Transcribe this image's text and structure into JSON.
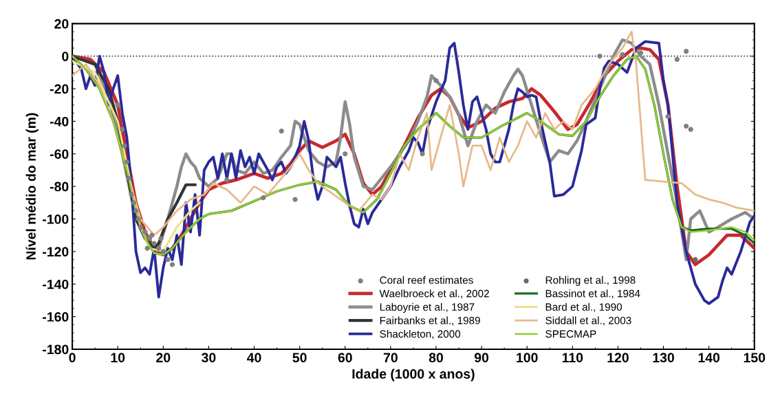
{
  "chart_data": {
    "type": "line",
    "xlabel": "Idade (1000 x anos)",
    "ylabel": "Nível médio do mar (m)",
    "xlim": [
      0,
      150
    ],
    "xticks": [
      0,
      10,
      20,
      30,
      40,
      50,
      60,
      70,
      80,
      90,
      100,
      110,
      120,
      130,
      140,
      150
    ],
    "ylim": [
      -180,
      20
    ],
    "yticks": [
      -180,
      -160,
      -140,
      -120,
      -100,
      -80,
      -60,
      -40,
      -20,
      0,
      20
    ],
    "grid": false,
    "legend": "bottom",
    "ref_lines": [
      {
        "axis": "y",
        "value": 0,
        "color": "#333333",
        "line_style": "dotted"
      }
    ],
    "series": [
      {
        "name": "Coral reef estimates",
        "type": "scatter",
        "marker": "circle",
        "color": "#808080",
        "x": [
          10,
          11,
          11.5,
          12,
          12.5,
          13,
          13.5,
          14,
          14.5,
          15,
          16,
          16.5,
          17,
          17.5,
          18,
          19,
          19.5,
          20,
          21,
          22,
          34,
          42,
          46,
          49,
          60,
          77,
          80,
          116,
          121,
          125,
          131,
          133,
          135,
          135,
          136
        ],
        "values": [
          -30,
          -45,
          -55,
          -65,
          -75,
          -85,
          -90,
          -95,
          -100,
          -105,
          -108,
          -118,
          -112,
          -110,
          -115,
          -118,
          -112,
          -120,
          -125,
          -128,
          -76,
          -87,
          -46,
          -88,
          -60,
          -60,
          -15,
          0,
          1,
          2,
          -37,
          -2,
          3,
          -43,
          -45
        ]
      },
      {
        "name": "Waelbroeck et al., 2002",
        "color": "#c8282d",
        "x": [
          0,
          4,
          7,
          10,
          12,
          14,
          16,
          18,
          20,
          22,
          24,
          26,
          28,
          30,
          33,
          36,
          40,
          43,
          46,
          48,
          50,
          52,
          55,
          58,
          60,
          62,
          64,
          66,
          68,
          70,
          73,
          76,
          79,
          81,
          83,
          85,
          87,
          90,
          93,
          96,
          99,
          101,
          103,
          106,
          109,
          111,
          114,
          117,
          120,
          123,
          125,
          127,
          129,
          131,
          133,
          135,
          137,
          140,
          144,
          147,
          150
        ],
        "values": [
          0,
          -2,
          -10,
          -30,
          -60,
          -90,
          -108,
          -118,
          -122,
          -118,
          -110,
          -100,
          -90,
          -82,
          -78,
          -76,
          -72,
          -75,
          -72,
          -66,
          -58,
          -52,
          -56,
          -52,
          -48,
          -60,
          -78,
          -85,
          -80,
          -70,
          -55,
          -38,
          -24,
          -20,
          -25,
          -36,
          -44,
          -40,
          -32,
          -28,
          -26,
          -20,
          -24,
          -34,
          -45,
          -42,
          -28,
          -12,
          -3,
          4,
          5,
          4,
          -2,
          -30,
          -80,
          -120,
          -128,
          -122,
          -110,
          -110,
          -118
        ]
      },
      {
        "name": "Laboyrie et al., 1987",
        "color": "#8c8c8c",
        "x": [
          0,
          5,
          8,
          11,
          14,
          17,
          19,
          21,
          23,
          24,
          25,
          26,
          27,
          28,
          30,
          32,
          34,
          35,
          36,
          38,
          40,
          42,
          44,
          46,
          48,
          49,
          50,
          52,
          54,
          56,
          58,
          59,
          60,
          61,
          62,
          64,
          66,
          68,
          70,
          72,
          74,
          76,
          78,
          79,
          81,
          83,
          85,
          87,
          89,
          91,
          93,
          95,
          97,
          98,
          99,
          101,
          103,
          105,
          107,
          109,
          111,
          113,
          116,
          119,
          121,
          123,
          125,
          127,
          129,
          131,
          133,
          135,
          136,
          138,
          140,
          142,
          145,
          148,
          150
        ],
        "values": [
          0,
          -5,
          -25,
          -60,
          -100,
          -115,
          -118,
          -100,
          -80,
          -68,
          -60,
          -65,
          -68,
          -75,
          -80,
          -75,
          -60,
          -60,
          -70,
          -72,
          -65,
          -72,
          -70,
          -62,
          -55,
          -40,
          -42,
          -58,
          -65,
          -68,
          -65,
          -50,
          -28,
          -42,
          -62,
          -80,
          -82,
          -75,
          -68,
          -60,
          -52,
          -40,
          -25,
          -12,
          -18,
          -25,
          -36,
          -55,
          -40,
          -30,
          -35,
          -22,
          -12,
          -8,
          -12,
          -30,
          -48,
          -65,
          -58,
          -60,
          -52,
          -40,
          -20,
          0,
          10,
          8,
          0,
          -5,
          -30,
          -60,
          -90,
          -125,
          -100,
          -95,
          -108,
          -105,
          -100,
          -96,
          -100
        ]
      },
      {
        "name": "Fairbanks et al., 1989",
        "color": "#333333",
        "x": [
          0,
          5,
          8,
          10,
          12,
          14,
          16,
          18,
          19,
          21,
          23,
          25,
          27
        ],
        "values": [
          0,
          -5,
          -20,
          -40,
          -70,
          -100,
          -112,
          -118,
          -115,
          -100,
          -90,
          -79,
          -79
        ]
      },
      {
        "name": "Shackleton, 2000",
        "color": "#2a2a9a",
        "x": [
          0,
          2,
          3,
          4,
          5,
          6,
          7,
          8,
          9,
          10,
          11,
          12,
          13,
          14,
          15,
          16,
          17,
          18,
          19,
          20,
          21,
          22,
          23,
          24,
          25,
          26,
          27,
          28,
          29,
          30,
          31,
          32,
          33,
          34,
          35,
          36,
          37,
          38,
          39,
          40,
          41,
          43,
          44,
          45,
          46,
          47,
          48,
          49,
          50,
          51,
          52,
          53,
          54,
          55,
          56,
          58,
          59,
          60,
          61,
          62,
          63,
          64,
          65,
          66,
          68,
          70,
          72,
          74,
          75,
          76,
          77,
          78,
          80,
          82,
          83,
          84,
          85,
          86,
          87,
          88,
          89,
          90,
          91,
          92,
          93,
          94,
          96,
          97,
          98,
          99,
          100,
          101,
          102,
          103,
          105,
          106,
          108,
          110,
          112,
          113,
          115,
          116,
          117,
          118,
          120,
          122,
          124,
          126,
          129,
          130,
          131,
          132,
          133,
          135,
          137,
          139,
          140,
          142,
          143,
          144,
          145,
          147,
          149,
          150
        ],
        "values": [
          0,
          -8,
          -20,
          -12,
          -18,
          0,
          -10,
          -30,
          -20,
          -12,
          -35,
          -50,
          -80,
          -120,
          -133,
          -130,
          -134,
          -118,
          -148,
          -130,
          -118,
          -125,
          -110,
          -128,
          -90,
          -108,
          -85,
          -110,
          -70,
          -65,
          -62,
          -75,
          -60,
          -75,
          -60,
          -75,
          -58,
          -68,
          -62,
          -72,
          -60,
          -70,
          -76,
          -68,
          -65,
          -72,
          -68,
          -62,
          -55,
          -40,
          -52,
          -75,
          -88,
          -80,
          -62,
          -68,
          -62,
          -78,
          -92,
          -103,
          -105,
          -94,
          -103,
          -96,
          -88,
          -80,
          -68,
          -58,
          -50,
          -53,
          -60,
          -45,
          -28,
          -15,
          5,
          8,
          -10,
          -30,
          -45,
          -28,
          -25,
          -35,
          -45,
          -60,
          -65,
          -65,
          -45,
          -30,
          -20,
          -22,
          -25,
          -24,
          -25,
          -40,
          -65,
          -86,
          -85,
          -80,
          -58,
          -42,
          -38,
          -20,
          -7,
          -3,
          -5,
          -10,
          5,
          9,
          8,
          -15,
          -30,
          -60,
          -90,
          -120,
          -140,
          -150,
          -152,
          -148,
          -138,
          -130,
          -134,
          -120,
          -102,
          -98
        ]
      },
      {
        "name": "Rohling et al., 1998",
        "type": "scatter",
        "marker": "circle",
        "color": "#6a6a6a",
        "x": [
          137
        ],
        "values": [
          -125
        ]
      },
      {
        "name": "Bassinot et al., 1984",
        "color": "#1a6b2a",
        "x": [
          0,
          3,
          6,
          9,
          12,
          14,
          16,
          18,
          20,
          22,
          25,
          28,
          30,
          35,
          40,
          45,
          50,
          54,
          58,
          61,
          64,
          67,
          70,
          73,
          76,
          80,
          83,
          86,
          90,
          95,
          100,
          103,
          107,
          110,
          113,
          116,
          119,
          122,
          124,
          126,
          128,
          130,
          132,
          134,
          136,
          140,
          145,
          148,
          150
        ],
        "values": [
          0,
          -8,
          -20,
          -40,
          -70,
          -95,
          -112,
          -121,
          -122,
          -118,
          -108,
          -100,
          -97,
          -95,
          -89,
          -83,
          -79,
          -77,
          -82,
          -92,
          -96,
          -88,
          -72,
          -55,
          -45,
          -35,
          -43,
          -50,
          -50,
          -42,
          -35,
          -40,
          -48,
          -49,
          -40,
          -25,
          -12,
          -2,
          0,
          -8,
          -30,
          -60,
          -88,
          -105,
          -107,
          -106,
          -106,
          -110,
          -115
        ]
      },
      {
        "name": "Bard et al., 1990",
        "color": "#f0e08a",
        "x": [
          0,
          5,
          10,
          13,
          15,
          17,
          20,
          23,
          26,
          28
        ],
        "values": [
          -3,
          -10,
          -40,
          -80,
          -105,
          -118,
          -120,
          -105,
          -95,
          -90
        ]
      },
      {
        "name": "Siddall et al., 2003",
        "color": "#e8b98a",
        "x": [
          0,
          3,
          6,
          9,
          12,
          15,
          18,
          20,
          23,
          26,
          29,
          31,
          34,
          37,
          40,
          43,
          46,
          48,
          50,
          52,
          54,
          56,
          58,
          60,
          63,
          66,
          68,
          70,
          72,
          74,
          76,
          78,
          79,
          81,
          83,
          85,
          86,
          88,
          90,
          92,
          94,
          96,
          98,
          100,
          102,
          104,
          106,
          108,
          110,
          112,
          115,
          118,
          121,
          123,
          124,
          126,
          130,
          134,
          137,
          140,
          143,
          146,
          150
        ],
        "values": [
          -12,
          -5,
          -18,
          -40,
          -70,
          -100,
          -110,
          -105,
          -95,
          -88,
          -85,
          -78,
          -82,
          -90,
          -80,
          -85,
          -75,
          -68,
          -60,
          -70,
          -78,
          -82,
          -86,
          -90,
          -95,
          -85,
          -88,
          -80,
          -60,
          -70,
          -50,
          -35,
          -70,
          -50,
          -30,
          -60,
          -80,
          -55,
          -55,
          -70,
          -50,
          -65,
          -55,
          -40,
          -50,
          -35,
          -45,
          -40,
          -45,
          -30,
          -20,
          -5,
          5,
          15,
          -5,
          -76,
          -77,
          -78,
          -85,
          -88,
          -90,
          -93,
          -95
        ]
      },
      {
        "name": "SPECMAP",
        "color": "#9acd32",
        "x": [
          0,
          3,
          6,
          9,
          12,
          14,
          16,
          18,
          20,
          22,
          25,
          28,
          30,
          35,
          40,
          45,
          50,
          54,
          58,
          61,
          64,
          67,
          70,
          73,
          76,
          80,
          83,
          86,
          90,
          95,
          100,
          103,
          107,
          110,
          113,
          116,
          119,
          122,
          124,
          126,
          128,
          130,
          132,
          134,
          136,
          140,
          145,
          148,
          150
        ],
        "values": [
          0,
          -8,
          -20,
          -40,
          -70,
          -95,
          -112,
          -121,
          -122,
          -118,
          -108,
          -100,
          -97,
          -95,
          -89,
          -83,
          -79,
          -77,
          -82,
          -92,
          -96,
          -88,
          -72,
          -55,
          -45,
          -35,
          -43,
          -50,
          -50,
          -42,
          -35,
          -40,
          -48,
          -49,
          -40,
          -25,
          -12,
          -2,
          0,
          -8,
          -30,
          -60,
          -88,
          -105,
          -108,
          -107,
          -105,
          -108,
          -113
        ]
      }
    ]
  }
}
